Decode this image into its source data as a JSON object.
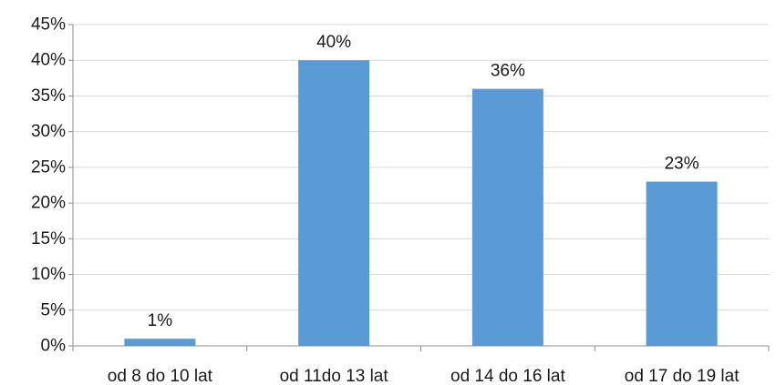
{
  "chart_data": {
    "type": "bar",
    "title": "",
    "xlabel": "",
    "ylabel": "",
    "categories": [
      "od 8 do 10 lat",
      "od 11do 13 lat",
      "od 14 do 16 lat",
      "od 17 do 19 lat"
    ],
    "values": [
      1,
      40,
      36,
      23
    ],
    "data_labels": [
      "1%",
      "40%",
      "36%",
      "23%"
    ],
    "ylim": [
      0,
      45
    ],
    "yticks": [
      0,
      5,
      10,
      15,
      20,
      25,
      30,
      35,
      40,
      45
    ],
    "ytick_labels": [
      "0%",
      "5%",
      "10%",
      "15%",
      "20%",
      "25%",
      "30%",
      "35%",
      "40%",
      "45%"
    ],
    "grid": true,
    "legend": "none",
    "bar_color": "#5b9bd5",
    "grid_color": "#d9d9d9",
    "axis_color": "#8c8c8c"
  }
}
